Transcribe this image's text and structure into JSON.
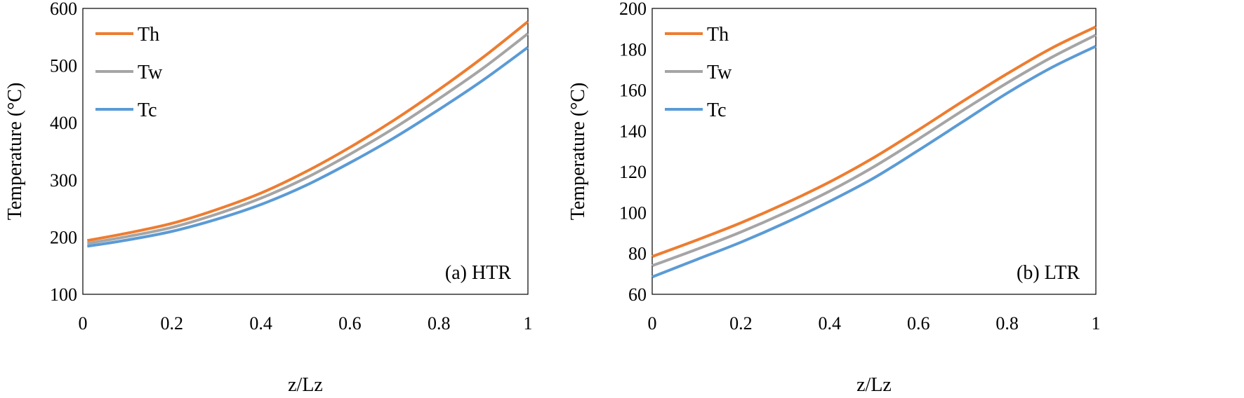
{
  "colors": {
    "Th": "#ED7D31",
    "Tw": "#A5A5A5",
    "Tc": "#5B9BD5",
    "frame": "#000000"
  },
  "chart_data": [
    {
      "type": "line",
      "annotation": "(a) HTR",
      "xlabel": "z/Lz",
      "ylabel": "Temperature (°C)",
      "xlim": [
        0,
        1
      ],
      "ylim": [
        100,
        600
      ],
      "xticks": [
        0,
        0.2,
        0.4,
        0.6,
        0.8,
        1
      ],
      "xtick_labels": [
        "0",
        "0.2",
        "0.4",
        "0.6",
        "0.8",
        "1"
      ],
      "yticks": [
        100,
        200,
        300,
        400,
        500,
        600
      ],
      "ytick_labels": [
        "100",
        "200",
        "300",
        "400",
        "500",
        "600"
      ],
      "grid": false,
      "legend": "top-left",
      "x": [
        0.01,
        0.1,
        0.2,
        0.3,
        0.4,
        0.5,
        0.6,
        0.7,
        0.8,
        0.9,
        1.0
      ],
      "series": [
        {
          "name": "Th",
          "color_key": "Th",
          "values": [
            194,
            207,
            224,
            248,
            277,
            314,
            357,
            405,
            458,
            515,
            577
          ]
        },
        {
          "name": "Tw",
          "color_key": "Tw",
          "values": [
            189,
            201,
            217,
            240,
            268,
            303,
            345,
            391,
            442,
            496,
            556
          ]
        },
        {
          "name": "Tc",
          "color_key": "Tc",
          "values": [
            184,
            195,
            210,
            231,
            257,
            290,
            330,
            374,
            423,
            475,
            532
          ]
        }
      ]
    },
    {
      "type": "line",
      "annotation": "(b) LTR",
      "xlabel": "z/Lz",
      "ylabel": "Temperature (°C)",
      "xlim": [
        0,
        1
      ],
      "ylim": [
        60,
        200
      ],
      "xticks": [
        0,
        0.2,
        0.4,
        0.6,
        0.8,
        1
      ],
      "xtick_labels": [
        "0",
        "0.2",
        "0.4",
        "0.6",
        "0.8",
        "1"
      ],
      "yticks": [
        60,
        80,
        100,
        120,
        140,
        160,
        180,
        200
      ],
      "ytick_labels": [
        "60",
        "80",
        "100",
        "120",
        "140",
        "160",
        "180",
        "200"
      ],
      "grid": false,
      "legend": "top-left",
      "x": [
        0.0,
        0.1,
        0.2,
        0.3,
        0.4,
        0.5,
        0.6,
        0.7,
        0.8,
        0.9,
        1.0
      ],
      "series": [
        {
          "name": "Th",
          "color_key": "Th",
          "values": [
            78.5,
            86.5,
            95,
            104.5,
            115,
            127,
            140.5,
            154.5,
            168,
            180.5,
            191
          ]
        },
        {
          "name": "Tw",
          "color_key": "Tw",
          "values": [
            74,
            82,
            90.5,
            100,
            110.5,
            122.5,
            136,
            150,
            163.5,
            176,
            187
          ]
        },
        {
          "name": "Tc",
          "color_key": "Tc",
          "values": [
            68.5,
            77,
            85.5,
            95,
            105.5,
            117,
            130.5,
            144.5,
            158.5,
            171,
            181.5
          ]
        }
      ]
    }
  ]
}
